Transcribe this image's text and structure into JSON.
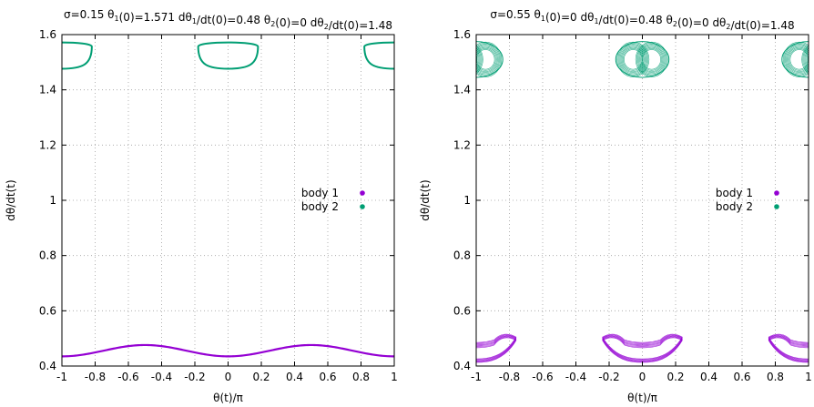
{
  "chart_data": [
    {
      "type": "scatter",
      "title_parts": [
        {
          "t": "σ=0.15 θ"
        },
        {
          "t": "1",
          "sub": true
        },
        {
          "t": "(0)=1.571 dθ"
        },
        {
          "t": "1",
          "sub": true
        },
        {
          "t": "/dt(0)=0.48 θ"
        },
        {
          "t": "2",
          "sub": true
        },
        {
          "t": "(0)=0 dθ"
        },
        {
          "t": "2",
          "sub": true
        },
        {
          "t": "/dt(0)=1.48"
        }
      ],
      "xlabel": "θ(t)/π",
      "ylabel": "dθ/dt(t)",
      "xlim": [
        -1,
        1
      ],
      "ylim": [
        0.4,
        1.6
      ],
      "xticks": [
        -1,
        -0.8,
        -0.6,
        -0.4,
        -0.2,
        0,
        0.2,
        0.4,
        0.6,
        0.8,
        1
      ],
      "xtick_labels": [
        "-1",
        "-0.8",
        "-0.6",
        "-0.4",
        "-0.2",
        "0",
        "0.2",
        "0.4",
        "0.6",
        "0.8",
        "1"
      ],
      "yticks": [
        0.4,
        0.6,
        0.8,
        1,
        1.2,
        1.4,
        1.6
      ],
      "ytick_labels": [
        "0.4",
        "0.6",
        "0.8",
        "1",
        "1.2",
        "1.4",
        "1.6"
      ],
      "grid": true,
      "legend_position": "center-right",
      "series": [
        {
          "name": "body 1",
          "color": "#9400d3",
          "kind": "curve",
          "x": [
            -1,
            -0.9,
            -0.8,
            -0.7,
            -0.6,
            -0.5,
            -0.4,
            -0.3,
            -0.2,
            -0.1,
            0,
            0.1,
            0.2,
            0.3,
            0.4,
            0.5,
            0.6,
            0.7,
            0.8,
            0.9,
            1
          ],
          "y": [
            0.435,
            0.438,
            0.447,
            0.459,
            0.471,
            0.476,
            0.471,
            0.459,
            0.447,
            0.438,
            0.435,
            0.438,
            0.447,
            0.459,
            0.471,
            0.476,
            0.471,
            0.459,
            0.447,
            0.438,
            0.435
          ],
          "thickness": 0.006
        },
        {
          "name": "body 2",
          "color": "#009e73",
          "kind": "loop",
          "loops": [
            {
              "cx": 0,
              "top": 1.57,
              "bottom": 1.483,
              "half_width": 0.18,
              "lower_half_width": 0.12
            },
            {
              "cx": -1,
              "top": 1.57,
              "bottom": 1.483,
              "half_width": 0.18,
              "lower_half_width": 0.12
            },
            {
              "cx": 1,
              "top": 1.57,
              "bottom": 1.483,
              "half_width": 0.18,
              "lower_half_width": 0.12
            }
          ],
          "bands": 1
        }
      ]
    },
    {
      "type": "scatter",
      "title_parts": [
        {
          "t": "σ=0.55 θ"
        },
        {
          "t": "1",
          "sub": true
        },
        {
          "t": "(0)=0 dθ"
        },
        {
          "t": "1",
          "sub": true
        },
        {
          "t": "/dt(0)=0.48 θ"
        },
        {
          "t": "2",
          "sub": true
        },
        {
          "t": "(0)=0 dθ"
        },
        {
          "t": "2",
          "sub": true
        },
        {
          "t": "/dt(0)=1.48"
        }
      ],
      "xlabel": "θ(t)/π",
      "ylabel": "dθ/dt(t)",
      "xlim": [
        -1,
        1
      ],
      "ylim": [
        0.4,
        1.6
      ],
      "xticks": [
        -1,
        -0.8,
        -0.6,
        -0.4,
        -0.2,
        0,
        0.2,
        0.4,
        0.6,
        0.8,
        1
      ],
      "xtick_labels": [
        "-1",
        "-0.8",
        "-0.6",
        "-0.4",
        "-0.2",
        "0",
        "0.2",
        "0.4",
        "0.6",
        "0.8",
        "1"
      ],
      "yticks": [
        0.4,
        0.6,
        0.8,
        1,
        1.2,
        1.4,
        1.6
      ],
      "ytick_labels": [
        "0.4",
        "0.6",
        "0.8",
        "1",
        "1.2",
        "1.4",
        "1.6"
      ],
      "grid": true,
      "legend_position": "center-right",
      "series": [
        {
          "name": "body 1",
          "color": "#9400d3",
          "kind": "band",
          "bands": [
            {
              "cx": 0,
              "half_width": 0.24,
              "y_top_edge": 0.515,
              "y_low_center": 0.452,
              "y_high_center": 0.495,
              "depth": 0.04
            },
            {
              "cx": -1,
              "half_width": 0.24,
              "y_top_edge": 0.515,
              "y_low_center": 0.452,
              "y_high_center": 0.495,
              "depth": 0.04
            },
            {
              "cx": 1,
              "half_width": 0.24,
              "y_top_edge": 0.515,
              "y_low_center": 0.452,
              "y_high_center": 0.495,
              "depth": 0.04
            }
          ]
        },
        {
          "name": "body 2",
          "color": "#009e73",
          "kind": "lobes",
          "groups": [
            {
              "cx": 0,
              "cy": 1.51,
              "half_width": 0.16,
              "half_height": 0.065
            },
            {
              "cx": -1,
              "cy": 1.51,
              "half_width": 0.16,
              "half_height": 0.065
            },
            {
              "cx": 1,
              "cy": 1.51,
              "half_width": 0.16,
              "half_height": 0.065
            }
          ]
        }
      ]
    }
  ]
}
